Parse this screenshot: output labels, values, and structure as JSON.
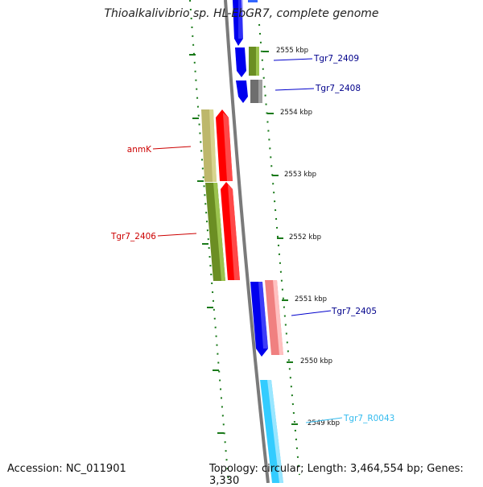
{
  "title": "Thioalkalivibrio sp. HL-EbGR7, complete genome",
  "footer": {
    "accession": "Accession: NC_011901",
    "summary": "Topology: circular; Length: 3,464,554 bp; Genes: 3,330"
  },
  "ticks": [
    {
      "label": "2555 kbp"
    },
    {
      "label": "2554 kbp"
    },
    {
      "label": "2553 kbp"
    },
    {
      "label": "2552 kbp"
    },
    {
      "label": "2551 kbp"
    },
    {
      "label": "2550 kbp"
    },
    {
      "label": "2549 kbp"
    }
  ],
  "gene_labels": [
    {
      "text": "Tgr7_2409",
      "color": "#00008b"
    },
    {
      "text": "Tgr7_2408",
      "color": "#00008b"
    },
    {
      "text": "anmK",
      "color": "#cc0000"
    },
    {
      "text": "Tgr7_2406",
      "color": "#cc0000"
    },
    {
      "text": "Tgr7_2405",
      "color": "#00008b"
    },
    {
      "text": "Tgr7_R0043",
      "color": "#33bbee"
    }
  ],
  "colors": {
    "backbone": "#7f7f7f",
    "tick_green": "#1a7a1a",
    "cds_blue": "#0000ee",
    "cds_red": "#ff0000",
    "cog_olive": "#6b8e23",
    "cog_khaki": "#bdb76b",
    "cog_gray": "#707070",
    "cog_pink": "#f08080",
    "rna_cyan": "#33ccff"
  }
}
